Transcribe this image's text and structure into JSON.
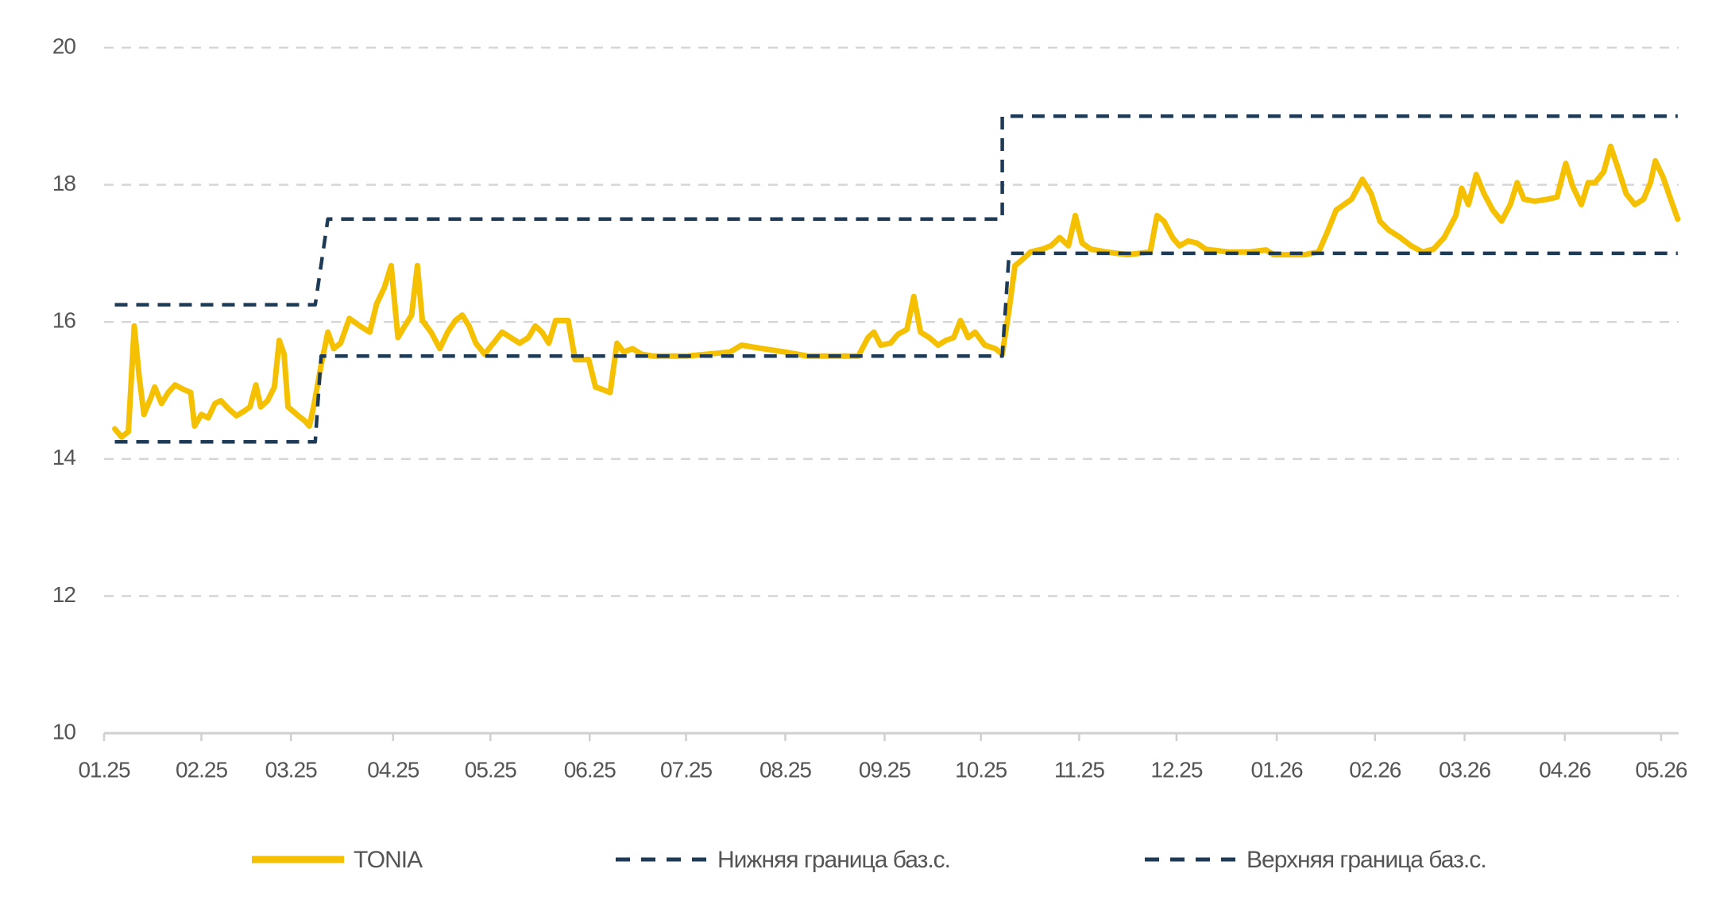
{
  "chart_data": {
    "type": "line",
    "xlim": [
      0,
      16.18
    ],
    "xticks": [
      {
        "value": 0,
        "label": "01.25"
      },
      {
        "value": 1.0,
        "label": "02.25"
      },
      {
        "value": 1.92,
        "label": "03.25"
      },
      {
        "value": 2.97,
        "label": "04.25"
      },
      {
        "value": 3.97,
        "label": "05.25"
      },
      {
        "value": 4.99,
        "label": "06.25"
      },
      {
        "value": 5.98,
        "label": "07.25"
      },
      {
        "value": 7.0,
        "label": "08.25"
      },
      {
        "value": 8.02,
        "label": "09.25"
      },
      {
        "value": 9.01,
        "label": "10.25"
      },
      {
        "value": 10.02,
        "label": "11.25"
      },
      {
        "value": 11.02,
        "label": "12.25"
      },
      {
        "value": 12.05,
        "label": "01.26"
      },
      {
        "value": 13.06,
        "label": "02.26"
      },
      {
        "value": 13.98,
        "label": "03.26"
      },
      {
        "value": 15.01,
        "label": "04.26"
      },
      {
        "value": 16.0,
        "label": "05.26"
      }
    ],
    "ylim": [
      10,
      20
    ],
    "yticks": [
      10,
      12,
      14,
      16,
      18,
      20
    ],
    "grid": true,
    "legend": "bottom",
    "series": [
      {
        "name": "TONIA",
        "color": "#f5c000",
        "style": "solid",
        "x": [
          0.11,
          0.18,
          0.25,
          0.31,
          0.36,
          0.41,
          0.48,
          0.52,
          0.59,
          0.66,
          0.73,
          0.81,
          0.89,
          0.93,
          1.0,
          1.07,
          1.14,
          1.2,
          1.28,
          1.36,
          1.43,
          1.5,
          1.56,
          1.61,
          1.68,
          1.75,
          1.8,
          1.85,
          1.89,
          1.98,
          2.06,
          2.11,
          2.16,
          2.23,
          2.3,
          2.36,
          2.43,
          2.52,
          2.63,
          2.73,
          2.8,
          2.88,
          2.95,
          3.02,
          3.09,
          3.16,
          3.22,
          3.27,
          3.36,
          3.45,
          3.53,
          3.61,
          3.68,
          3.75,
          3.82,
          3.91,
          4.0,
          4.09,
          4.18,
          4.27,
          4.36,
          4.43,
          4.5,
          4.57,
          4.64,
          4.7,
          4.77,
          4.84,
          4.91,
          4.98,
          5.05,
          5.11,
          5.2,
          5.27,
          5.34,
          5.43,
          5.52,
          5.64,
          5.75,
          5.98,
          6.2,
          6.43,
          6.55,
          6.77,
          7.0,
          7.23,
          7.57,
          7.75,
          7.85,
          7.91,
          7.98,
          8.08,
          8.16,
          8.25,
          8.32,
          8.39,
          8.48,
          8.57,
          8.65,
          8.73,
          8.8,
          8.88,
          8.95,
          9.05,
          9.16,
          9.23,
          9.3,
          9.36,
          9.43,
          9.52,
          9.64,
          9.73,
          9.82,
          9.91,
          9.98,
          10.05,
          10.14,
          10.3,
          10.52,
          10.75,
          10.82,
          10.89,
          10.98,
          11.05,
          11.14,
          11.23,
          11.32,
          11.55,
          11.77,
          11.94,
          12.02,
          12.34,
          12.48,
          12.57,
          12.66,
          12.74,
          12.82,
          12.93,
          13.02,
          13.11,
          13.2,
          13.32,
          13.43,
          13.55,
          13.66,
          13.77,
          13.89,
          13.95,
          14.02,
          14.1,
          14.18,
          14.27,
          14.36,
          14.45,
          14.52,
          14.59,
          14.7,
          14.84,
          14.93,
          15.02,
          15.09,
          15.18,
          15.25,
          15.32,
          15.41,
          15.48,
          15.55,
          15.64,
          15.73,
          15.82,
          15.89,
          15.94,
          16.02,
          16.09,
          16.17
        ],
        "values": [
          14.44,
          14.32,
          14.4,
          15.94,
          15.21,
          14.65,
          14.89,
          15.05,
          14.81,
          14.97,
          15.08,
          15.02,
          14.97,
          14.48,
          14.65,
          14.6,
          14.81,
          14.85,
          14.73,
          14.63,
          14.69,
          14.76,
          15.08,
          14.76,
          14.85,
          15.05,
          15.73,
          15.53,
          14.76,
          14.65,
          14.56,
          14.48,
          14.81,
          15.37,
          15.85,
          15.61,
          15.69,
          16.05,
          15.94,
          15.85,
          16.26,
          16.5,
          16.82,
          15.77,
          15.94,
          16.1,
          16.82,
          16.02,
          15.85,
          15.61,
          15.85,
          16.02,
          16.1,
          15.94,
          15.69,
          15.53,
          15.69,
          15.85,
          15.77,
          15.69,
          15.77,
          15.94,
          15.85,
          15.69,
          16.02,
          16.02,
          16.02,
          15.45,
          15.45,
          15.45,
          15.05,
          15.02,
          14.97,
          15.69,
          15.56,
          15.61,
          15.53,
          15.5,
          15.5,
          15.5,
          15.53,
          15.56,
          15.66,
          15.61,
          15.56,
          15.5,
          15.5,
          15.5,
          15.77,
          15.85,
          15.66,
          15.69,
          15.82,
          15.89,
          16.37,
          15.85,
          15.77,
          15.66,
          15.73,
          15.77,
          16.02,
          15.77,
          15.85,
          15.66,
          15.61,
          15.53,
          16.18,
          16.82,
          16.9,
          17.02,
          17.06,
          17.11,
          17.23,
          17.11,
          17.55,
          17.15,
          17.06,
          17.02,
          16.98,
          17.02,
          17.55,
          17.47,
          17.23,
          17.11,
          17.18,
          17.15,
          17.06,
          17.02,
          17.02,
          17.05,
          16.98,
          16.98,
          17.02,
          17.31,
          17.63,
          17.71,
          17.79,
          18.08,
          17.87,
          17.47,
          17.34,
          17.23,
          17.11,
          17.02,
          17.06,
          17.23,
          17.55,
          17.95,
          17.71,
          18.15,
          17.87,
          17.63,
          17.47,
          17.71,
          18.03,
          17.79,
          17.76,
          17.79,
          17.82,
          18.31,
          17.98,
          17.71,
          18.03,
          18.03,
          18.19,
          18.56,
          18.27,
          17.87,
          17.71,
          17.79,
          18.03,
          18.35,
          18.11,
          17.82,
          17.5
        ]
      },
      {
        "name": "Нижняя граница баз.с.",
        "color": "#1d3a57",
        "style": "dashed",
        "x": [
          0.11,
          2.17,
          2.23,
          9.23,
          9.3,
          16.17
        ],
        "values": [
          14.25,
          14.25,
          15.5,
          15.5,
          17,
          17
        ]
      },
      {
        "name": "Верхняя граница баз.с.",
        "color": "#1d3a57",
        "style": "dashed",
        "x": [
          0.11,
          2.17,
          2.3,
          9.23,
          9.23,
          16.17
        ],
        "values": [
          16.25,
          16.25,
          17.5,
          17.5,
          19,
          19
        ]
      }
    ]
  }
}
